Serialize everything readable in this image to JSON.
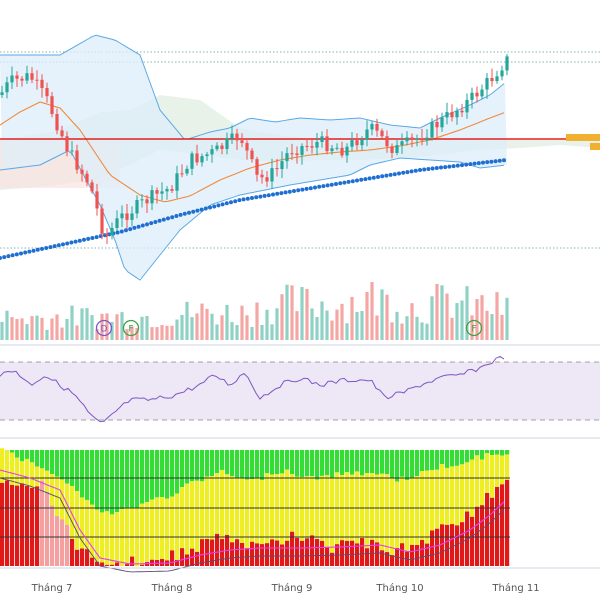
{
  "chart_data": {
    "type": "candlestick",
    "panes": [
      "price",
      "volume",
      "rsi",
      "breadth"
    ],
    "x_axis": {
      "tick_labels": [
        "Tháng 7",
        "Tháng 8",
        "Tháng 9",
        "Tháng 10",
        "Tháng 11"
      ]
    },
    "price": {
      "overlays": [
        "bollinger-bands",
        "moving-average",
        "ichimoku-cloud",
        "trend-dots",
        "support-line"
      ],
      "dotted_levels": 3,
      "red_level_present": true
    },
    "volume": {
      "event_markers": [
        {
          "label": "D",
          "color": "#7e57c2"
        },
        {
          "label": "F",
          "color": "#43a047"
        },
        {
          "label": "F",
          "color": "#43a047"
        }
      ]
    },
    "rsi": {
      "band_color": "#ede7f6",
      "line_color": "#7e57c2"
    },
    "breadth": {
      "colors": {
        "green": "#33dd33",
        "yellow": "#eeee22",
        "red": "#e01818",
        "pink": "#f4a0a0"
      }
    }
  }
}
